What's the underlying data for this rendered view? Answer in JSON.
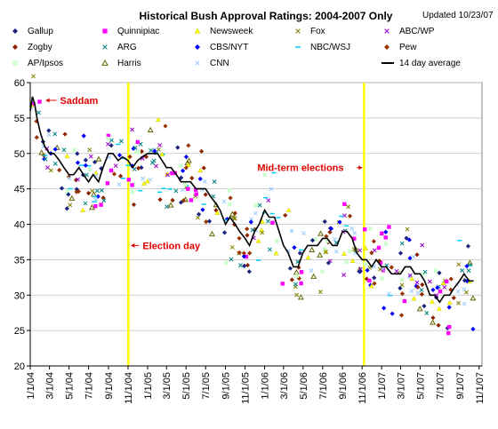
{
  "chart_data": {
    "type": "scatter",
    "title": "Historical Bush Approval Ratings: 2004-2007 Only",
    "subtitle": "Updated 10/23/07",
    "xlabel": "",
    "ylabel": "",
    "ylim": [
      20,
      60
    ],
    "xlim": [
      "2004-01-01",
      "2007-11-10"
    ],
    "y_ticks": [
      "20",
      "25",
      "30",
      "35",
      "40",
      "45",
      "50",
      "55",
      "60"
    ],
    "x_ticks": [
      "1/1/04",
      "3/1/04",
      "5/1/04",
      "7/1/04",
      "9/1/04",
      "11/1/04",
      "1/1/05",
      "3/1/05",
      "5/1/05",
      "7/1/05",
      "9/1/05",
      "11/1/05",
      "1/1/06",
      "3/1/06",
      "5/1/06",
      "7/1/06",
      "9/1/06",
      "11/1/06",
      "1/1/07",
      "3/1/07",
      "5/1/07",
      "7/1/07",
      "9/1/07",
      "11/1/07"
    ],
    "grid": true,
    "legend_position": "top",
    "legend": [
      {
        "name": "Gallup",
        "marker": "diamond",
        "color": "#1a237e"
      },
      {
        "name": "Quinnipiac",
        "marker": "square",
        "color": "#ff00ff"
      },
      {
        "name": "Newsweek",
        "marker": "triangle",
        "color": "#ffff00"
      },
      {
        "name": "Fox",
        "marker": "x",
        "color": "#808000"
      },
      {
        "name": "ABC/WP",
        "marker": "x",
        "color": "#9900cc"
      },
      {
        "name": "Zogby",
        "marker": "diamond",
        "color": "#8b2500"
      },
      {
        "name": "ARG",
        "marker": "x",
        "color": "#008080"
      },
      {
        "name": "CBS/NYT",
        "marker": "diamond",
        "color": "#0000ff"
      },
      {
        "name": "NBC/WSJ",
        "marker": "dash",
        "color": "#00ccff"
      },
      {
        "name": "Pew",
        "marker": "diamond",
        "color": "#993300"
      },
      {
        "name": "AP/Ipsos",
        "marker": "square",
        "color": "#ccffcc"
      },
      {
        "name": "Harris",
        "marker": "triangle-open",
        "color": "#666600"
      },
      {
        "name": "CNN",
        "marker": "x",
        "color": "#99ccff"
      },
      {
        "name": "14 day average",
        "marker": "line",
        "color": "#000000"
      }
    ],
    "annotations": [
      {
        "text": "Saddam",
        "x": "2003-12-14",
        "y": 57.5
      },
      {
        "text": "Mid-term elections",
        "x": "2006-11-07",
        "y": 48
      },
      {
        "text": "Election day",
        "x": "2004-11-02",
        "y": 37
      }
    ],
    "vertical_lines": [
      {
        "x": "2004-11-02",
        "color": "#ffff00"
      },
      {
        "x": "2006-11-07",
        "color": "#ffff00"
      }
    ],
    "series": [
      {
        "name": "14 day average",
        "x": [
          "2004-01-01",
          "2004-01-08",
          "2004-01-15",
          "2004-01-22",
          "2004-02-01",
          "2004-02-15",
          "2004-03-01",
          "2004-03-15",
          "2004-04-01",
          "2004-04-15",
          "2004-05-01",
          "2004-05-15",
          "2004-06-01",
          "2004-06-15",
          "2004-07-01",
          "2004-07-15",
          "2004-08-01",
          "2004-08-15",
          "2004-09-01",
          "2004-09-15",
          "2004-10-01",
          "2004-10-15",
          "2004-11-01",
          "2004-11-15",
          "2004-12-01",
          "2004-12-15",
          "2005-01-01",
          "2005-01-15",
          "2005-02-01",
          "2005-02-15",
          "2005-03-01",
          "2005-03-15",
          "2005-04-01",
          "2005-04-15",
          "2005-05-01",
          "2005-05-15",
          "2005-06-01",
          "2005-06-15",
          "2005-07-01",
          "2005-07-15",
          "2005-08-01",
          "2005-08-15",
          "2005-09-01",
          "2005-09-15",
          "2005-10-01",
          "2005-10-15",
          "2005-11-01",
          "2005-11-15",
          "2005-12-01",
          "2005-12-15",
          "2006-01-01",
          "2006-01-15",
          "2006-02-01",
          "2006-02-15",
          "2006-03-01",
          "2006-03-15",
          "2006-04-01",
          "2006-04-15",
          "2006-05-01",
          "2006-05-15",
          "2006-06-01",
          "2006-06-15",
          "2006-07-01",
          "2006-07-15",
          "2006-08-01",
          "2006-08-15",
          "2006-09-01",
          "2006-09-15",
          "2006-10-01",
          "2006-10-15",
          "2006-11-01",
          "2006-11-15",
          "2006-12-01",
          "2006-12-15",
          "2007-01-01",
          "2007-01-15",
          "2007-02-01",
          "2007-02-15",
          "2007-03-01",
          "2007-03-15",
          "2007-04-01",
          "2007-04-15",
          "2007-05-01",
          "2007-05-15",
          "2007-06-01",
          "2007-06-15",
          "2007-07-01",
          "2007-07-15",
          "2007-08-01",
          "2007-08-15",
          "2007-09-01",
          "2007-09-15",
          "2007-10-01",
          "2007-10-15"
        ],
        "y": [
          56,
          58,
          57,
          55,
          53,
          51,
          50,
          50,
          49,
          48,
          47,
          47,
          48,
          47,
          46,
          47,
          46,
          48,
          50,
          50,
          49,
          49.5,
          49,
          48,
          49,
          49.5,
          50,
          50,
          50,
          49,
          48,
          48,
          47,
          46,
          46,
          46,
          45,
          45,
          45,
          44,
          43,
          42,
          40,
          41,
          40,
          39,
          38,
          37,
          39,
          40,
          42,
          41,
          41,
          39,
          37,
          36,
          34,
          34,
          36,
          37,
          37,
          37,
          38,
          38,
          37,
          37,
          39,
          39,
          38,
          36,
          35,
          35,
          34,
          35,
          34,
          34,
          33,
          33,
          33,
          34,
          34,
          33,
          33,
          32,
          30,
          30,
          29,
          30,
          30,
          31,
          32,
          33,
          32,
          32
        ]
      }
    ]
  }
}
